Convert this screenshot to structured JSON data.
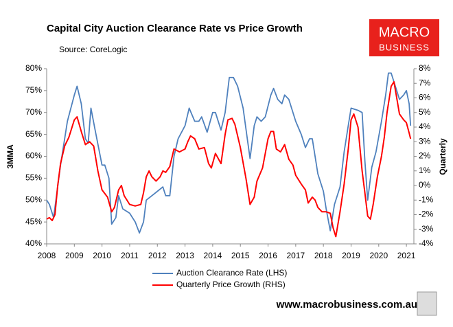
{
  "chart_data": {
    "type": "line",
    "title": "Capital City Auction Clearance Rate vs Price Growth",
    "subtitle": "Source: CoreLogic",
    "logo_top": "MACRO",
    "logo_bottom": "BUSINESS",
    "website": "www.macrobusiness.com.au",
    "ylabel": "3MMA",
    "y2label": "Quarterly",
    "xlim": [
      2008,
      2021.27
    ],
    "xticks": [
      2008,
      2009,
      2010,
      2011,
      2012,
      2013,
      2014,
      2015,
      2016,
      2017,
      2018,
      2019,
      2020,
      2021
    ],
    "ylim": [
      40,
      80
    ],
    "yticks": [
      {
        "value": 40,
        "label": "40%"
      },
      {
        "value": 45,
        "label": "45%"
      },
      {
        "value": 50,
        "label": "50%"
      },
      {
        "value": 55,
        "label": "55%"
      },
      {
        "value": 60,
        "label": "60%"
      },
      {
        "value": 65,
        "label": "65%"
      },
      {
        "value": 70,
        "label": "70%"
      },
      {
        "value": 75,
        "label": "75%"
      },
      {
        "value": 80,
        "label": "80%"
      }
    ],
    "y2lim": [
      -4,
      8
    ],
    "y2ticks": [
      {
        "value": -4,
        "label": "-4%"
      },
      {
        "value": -3,
        "label": "-3%"
      },
      {
        "value": -2,
        "label": "-2%"
      },
      {
        "value": -1,
        "label": "-1%"
      },
      {
        "value": 0,
        "label": "0%"
      },
      {
        "value": 1,
        "label": "1%"
      },
      {
        "value": 2,
        "label": "2%"
      },
      {
        "value": 3,
        "label": "3%"
      },
      {
        "value": 4,
        "label": "4%"
      },
      {
        "value": 5,
        "label": "5%"
      },
      {
        "value": 6,
        "label": "6%"
      },
      {
        "value": 7,
        "label": "7%"
      },
      {
        "value": 8,
        "label": "8%"
      }
    ],
    "series": [
      {
        "name": "Auction Clearance Rate (LHS)",
        "color": "#4f81bd",
        "axis": "y",
        "x": [
          2008.0,
          2008.1,
          2008.25,
          2008.5,
          2008.75,
          2009.0,
          2009.1,
          2009.25,
          2009.4,
          2009.5,
          2009.6,
          2009.75,
          2010.0,
          2010.1,
          2010.25,
          2010.35,
          2010.5,
          2010.6,
          2010.75,
          2011.0,
          2011.2,
          2011.35,
          2011.5,
          2011.6,
          2011.8,
          2012.0,
          2012.2,
          2012.3,
          2012.45,
          2012.6,
          2012.75,
          2013.0,
          2013.15,
          2013.35,
          2013.5,
          2013.6,
          2013.8,
          2014.0,
          2014.1,
          2014.3,
          2014.45,
          2014.6,
          2014.75,
          2014.9,
          2015.1,
          2015.25,
          2015.35,
          2015.5,
          2015.6,
          2015.75,
          2015.9,
          2016.1,
          2016.2,
          2016.35,
          2016.5,
          2016.6,
          2016.75,
          2017.0,
          2017.2,
          2017.35,
          2017.5,
          2017.6,
          2017.8,
          2018.0,
          2018.1,
          2018.25,
          2018.4,
          2018.6,
          2018.75,
          2018.9,
          2019.0,
          2019.25,
          2019.4,
          2019.5,
          2019.6,
          2019.75,
          2019.9,
          2020.1,
          2020.25,
          2020.35,
          2020.45,
          2020.6,
          2020.75,
          2020.9,
          2021.0,
          2021.1,
          2021.15
        ],
        "values": [
          50,
          49,
          46,
          58,
          68,
          74,
          76,
          72,
          64,
          63,
          71,
          66,
          58,
          58,
          55,
          44.5,
          46,
          51,
          48,
          47,
          45,
          42.5,
          45,
          50,
          51,
          52,
          53,
          51,
          51,
          60,
          64,
          67,
          71,
          68,
          68,
          69,
          65.5,
          70,
          70,
          66,
          70,
          78,
          78,
          76,
          71,
          64,
          59.5,
          67,
          69,
          68,
          69,
          74,
          75.5,
          73,
          72,
          74,
          73,
          68,
          65,
          62,
          64,
          64,
          56,
          52,
          48,
          43,
          49,
          53,
          61,
          67,
          71,
          70.5,
          70,
          59,
          50,
          57.5,
          61,
          68,
          74,
          79,
          79,
          76,
          73,
          74,
          75,
          72,
          67
        ]
      },
      {
        "name": "Quarterly Price Growth (RHS)",
        "color": "#ff0000",
        "axis": "y2",
        "x": [
          2008.0,
          2008.1,
          2008.2,
          2008.3,
          2008.4,
          2008.5,
          2008.65,
          2008.8,
          2009.0,
          2009.1,
          2009.25,
          2009.4,
          2009.55,
          2009.7,
          2009.85,
          2010.0,
          2010.2,
          2010.35,
          2010.45,
          2010.6,
          2010.7,
          2010.8,
          2011.0,
          2011.2,
          2011.4,
          2011.5,
          2011.6,
          2011.7,
          2011.8,
          2011.95,
          2012.1,
          2012.2,
          2012.3,
          2012.45,
          2012.6,
          2012.8,
          2013.0,
          2013.1,
          2013.2,
          2013.35,
          2013.5,
          2013.7,
          2013.85,
          2013.95,
          2014.1,
          2014.3,
          2014.45,
          2014.55,
          2014.7,
          2014.8,
          2015.0,
          2015.2,
          2015.35,
          2015.5,
          2015.6,
          2015.8,
          2016.0,
          2016.1,
          2016.2,
          2016.3,
          2016.45,
          2016.6,
          2016.75,
          2016.9,
          2017.0,
          2017.2,
          2017.35,
          2017.45,
          2017.6,
          2017.7,
          2017.8,
          2017.95,
          2018.1,
          2018.25,
          2018.35,
          2018.45,
          2018.6,
          2018.75,
          2018.9,
          2019.0,
          2019.1,
          2019.25,
          2019.4,
          2019.5,
          2019.6,
          2019.7,
          2019.8,
          2019.95,
          2020.1,
          2020.2,
          2020.3,
          2020.45,
          2020.55,
          2020.65,
          2020.75,
          2020.9,
          2021.0,
          2021.1,
          2021.15
        ],
        "values": [
          -2.3,
          -2.2,
          -2.4,
          -2.0,
          0,
          1.5,
          2.7,
          3.3,
          4.5,
          4.7,
          3.7,
          2.8,
          3.0,
          2.7,
          1.0,
          -0.3,
          -0.8,
          -1.8,
          -1.5,
          -0.3,
          0.0,
          -0.7,
          -1.3,
          -1.4,
          -1.3,
          -0.5,
          0.6,
          1.0,
          0.6,
          0.3,
          0.6,
          1.0,
          0.9,
          1.3,
          2.5,
          2.3,
          2.5,
          3.0,
          3.4,
          3.2,
          2.5,
          2.6,
          1.5,
          1.2,
          2.2,
          1.5,
          3.5,
          4.5,
          4.6,
          4.2,
          2.6,
          0.5,
          -1.3,
          -0.8,
          0.3,
          1.2,
          3.2,
          3.7,
          3.7,
          2.5,
          2.3,
          2.8,
          1.8,
          1.4,
          0.7,
          0.1,
          -0.3,
          -1.2,
          -0.8,
          -1.0,
          -1.5,
          -1.8,
          -1.8,
          -1.9,
          -2.9,
          -3.5,
          -1.8,
          0.1,
          2.5,
          4.5,
          4.9,
          4.0,
          1.0,
          -0.5,
          -2.1,
          -2.3,
          -1.3,
          0.6,
          2.0,
          3.3,
          5.0,
          6.8,
          7.1,
          6.0,
          4.9,
          4.5,
          4.3,
          3.6,
          3.2
        ]
      }
    ]
  }
}
